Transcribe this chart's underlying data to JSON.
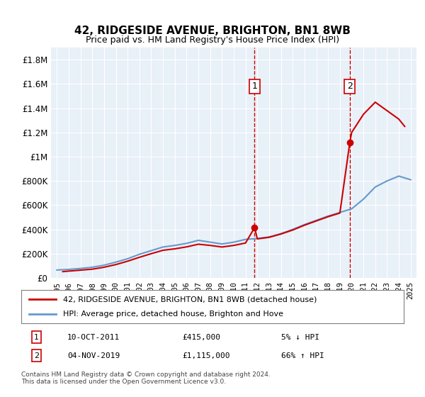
{
  "title": "42, RIDGESIDE AVENUE, BRIGHTON, BN1 8WB",
  "subtitle": "Price paid vs. HM Land Registry's House Price Index (HPI)",
  "legend_line1": "42, RIDGESIDE AVENUE, BRIGHTON, BN1 8WB (detached house)",
  "legend_line2": "HPI: Average price, detached house, Brighton and Hove",
  "footnote": "Contains HM Land Registry data © Crown copyright and database right 2024.\nThis data is licensed under the Open Government Licence v3.0.",
  "annotation1_num": "1",
  "annotation1_date": "10-OCT-2011",
  "annotation1_price": "£415,000",
  "annotation1_hpi": "5% ↓ HPI",
  "annotation2_num": "2",
  "annotation2_date": "04-NOV-2019",
  "annotation2_price": "£1,115,000",
  "annotation2_hpi": "66% ↑ HPI",
  "marker1_x": 2011.77,
  "marker1_y": 415000,
  "marker2_x": 2019.84,
  "marker2_y": 1115000,
  "vline1_x": 2011.77,
  "vline2_x": 2019.84,
  "property_color": "#cc0000",
  "hpi_color": "#6699cc",
  "background_color": "#e8f0f8",
  "ylim": [
    0,
    1900000
  ],
  "xlim": [
    1994.5,
    2025.5
  ],
  "hpi_years": [
    1995,
    1996,
    1997,
    1998,
    1999,
    2000,
    2001,
    2002,
    2003,
    2004,
    2005,
    2006,
    2007,
    2008,
    2009,
    2010,
    2011,
    2012,
    2013,
    2014,
    2015,
    2016,
    2017,
    2018,
    2019,
    2020,
    2021,
    2022,
    2023,
    2024,
    2025
  ],
  "hpi_values": [
    65000,
    70000,
    78000,
    88000,
    105000,
    130000,
    158000,
    195000,
    225000,
    255000,
    268000,
    285000,
    310000,
    295000,
    280000,
    295000,
    318000,
    325000,
    338000,
    365000,
    400000,
    440000,
    475000,
    510000,
    540000,
    570000,
    650000,
    750000,
    800000,
    840000,
    810000
  ],
  "property_years": [
    1995.5,
    2011.77,
    2019.84
  ],
  "property_values": [
    52000,
    415000,
    1115000
  ],
  "prop_extended_years": [
    1995.5,
    1996,
    1997,
    1998,
    1999,
    2000,
    2001,
    2002,
    2003,
    2004,
    2005,
    2006,
    2007,
    2008,
    2009,
    2010,
    2011,
    2011.77,
    2012,
    2013,
    2014,
    2015,
    2016,
    2017,
    2018,
    2019,
    2019.84,
    2020,
    2021,
    2022,
    2023,
    2024,
    2024.5
  ],
  "prop_extended_values": [
    52000,
    56000,
    64000,
    72000,
    88000,
    110000,
    138000,
    170000,
    200000,
    228000,
    240000,
    256000,
    278000,
    268000,
    255000,
    268000,
    288000,
    415000,
    322000,
    335000,
    362000,
    395000,
    435000,
    470000,
    505000,
    535000,
    1115000,
    1200000,
    1350000,
    1450000,
    1380000,
    1310000,
    1250000
  ]
}
